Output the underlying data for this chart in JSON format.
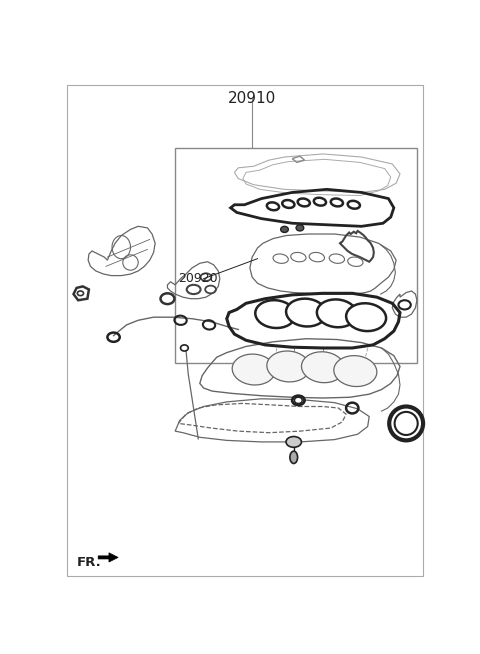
{
  "title": "20910",
  "label_20920": "20920",
  "label_FR": "FR.",
  "bg_color": "#ffffff",
  "line_color": "#666666",
  "dark_color": "#222222",
  "mid_color": "#555555",
  "figsize": [
    4.8,
    6.54
  ],
  "dpi": 100
}
